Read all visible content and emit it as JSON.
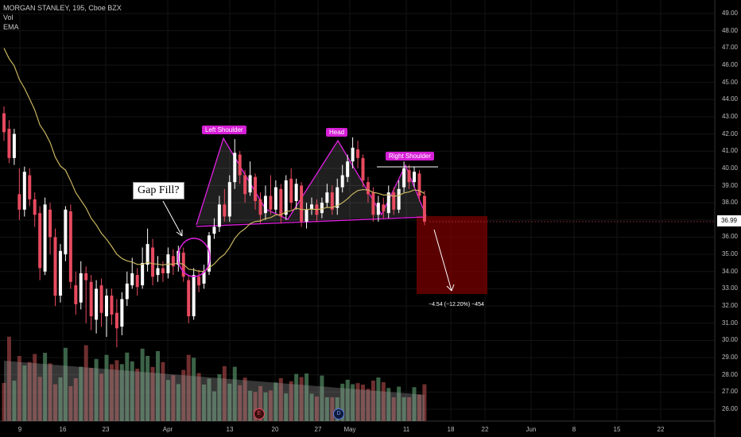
{
  "legend": {
    "symbol_line": "MORGAN STANLEY, 195, Cboe BZX",
    "vol_label": "Vol",
    "ema_label": "EMA"
  },
  "annotations": {
    "left_shoulder": "Left Shoulder",
    "head": "Head",
    "right_shoulder": "Right Shoulder",
    "gap_fill": "Gap Fill?",
    "measure": "−4.54 (−12.20%) −454",
    "event_e": "E",
    "event_d": "D"
  },
  "current_price_label": "36.99",
  "colors": {
    "up": "#ffffff",
    "down": "#e84a5f",
    "ema": "#c8b560",
    "pattern": "#e020e0",
    "volume_up": "#4a7c59",
    "volume_down": "#8b3a3a",
    "target_box": "#7a0000"
  },
  "chart_data": {
    "type": "candlestick",
    "title": "MORGAN STANLEY, 195, Cboe BZX",
    "y_ticks": [
      "49.00",
      "48.00",
      "47.00",
      "46.00",
      "45.00",
      "44.00",
      "43.00",
      "42.00",
      "41.00",
      "40.00",
      "39.00",
      "38.00",
      "37.00",
      "36.00",
      "35.00",
      "34.00",
      "33.00",
      "32.00",
      "31.00",
      "30.00",
      "29.00",
      "28.00",
      "27.00",
      "26.00"
    ],
    "x_ticks": [
      "9",
      "16",
      "23",
      "Apr",
      "13",
      "20",
      "27",
      "May",
      "11",
      "18",
      "22",
      "Jun",
      "8",
      "15",
      "22"
    ],
    "ylim": [
      25.4,
      49.6
    ],
    "last_price": 36.99
  }
}
